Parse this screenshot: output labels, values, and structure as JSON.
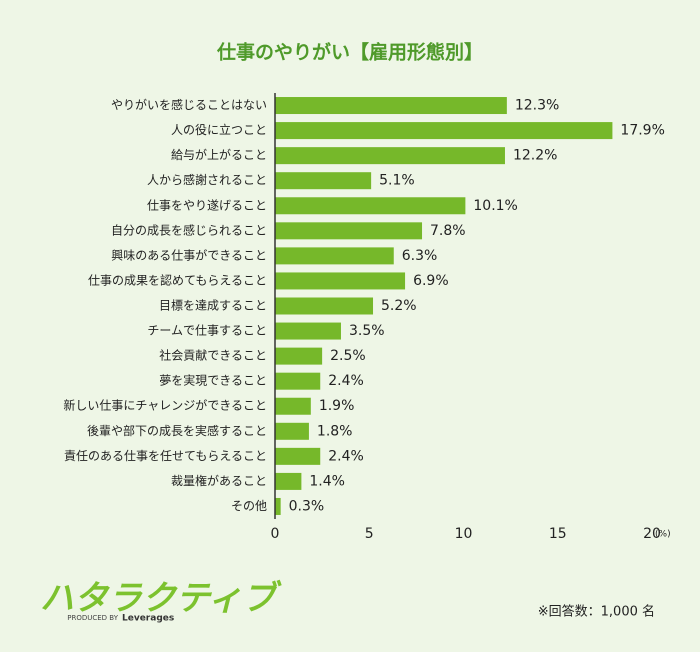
{
  "chart_data": {
    "type": "bar",
    "orientation": "horizontal",
    "title": "仕事のやりがい【雇用形態別】",
    "categories": [
      "やりがいを感じることはない",
      "人の役に立つこと",
      "給与が上がること",
      "人から感謝されること",
      "仕事をやり遂げること",
      "自分の成長を感じられること",
      "興味のある仕事ができること",
      "仕事の成果を認めてもらえること",
      "目標を達成すること",
      "チームで仕事すること",
      "社会貢献できること",
      "夢を実現できること",
      "新しい仕事にチャレンジができること",
      "後輩や部下の成長を実感すること",
      "責任のある仕事を任せてもらえること",
      "裁量権があること",
      "その他"
    ],
    "values": [
      12.3,
      17.9,
      12.2,
      5.1,
      10.1,
      7.8,
      6.3,
      6.9,
      5.2,
      3.5,
      2.5,
      2.4,
      1.9,
      1.8,
      2.4,
      1.4,
      0.3
    ],
    "value_labels": [
      "12.3%",
      "17.9%",
      "12.2%",
      "5.1%",
      "10.1%",
      "7.8%",
      "6.3%",
      "6.9%",
      "5.2%",
      "3.5%",
      "2.5%",
      "2.4%",
      "1.9%",
      "1.8%",
      "2.4%",
      "1.4%",
      "0.3%"
    ],
    "color": "#76b82a",
    "xlim": [
      0,
      20
    ],
    "xticks": [
      0,
      5,
      10,
      15,
      20
    ],
    "x_unit": "(%)",
    "grid": false,
    "note": "※回答数：1,000 名"
  },
  "logo": {
    "name": "ハタラクティブ",
    "produced_by": "PRODUCED BY",
    "brand": "Leverages"
  }
}
